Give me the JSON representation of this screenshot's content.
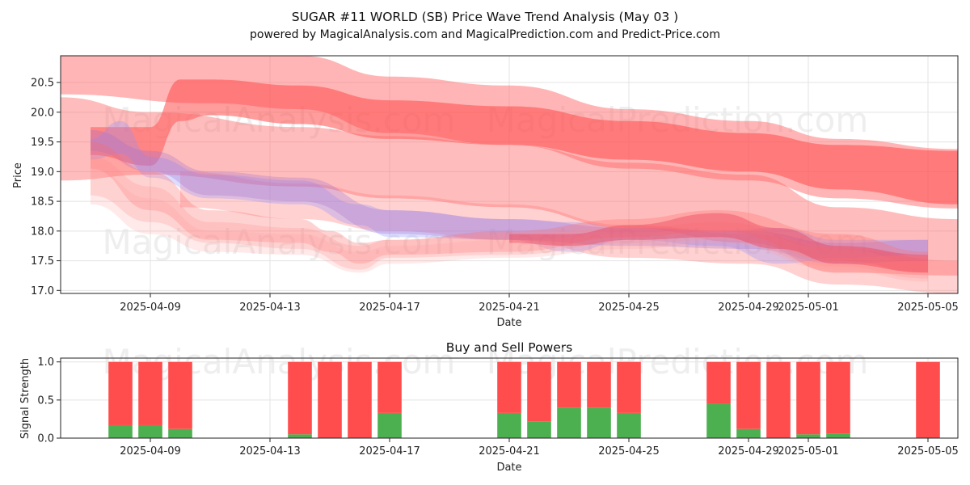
{
  "chart_data": [
    {
      "type": "area",
      "title": "SUGAR #11 WORLD (SB) Price Wave Trend Analysis (May 03 )",
      "subtitle": "powered by MagicalAnalysis.com and MagicalPrediction.com and Predict-Price.com",
      "xlabel": "Date",
      "ylabel": "Price",
      "ylim": [
        16.95,
        20.95
      ],
      "xlim": [
        "2025-04-06",
        "2025-05-06"
      ],
      "yticks": [
        17.0,
        17.5,
        18.0,
        18.5,
        19.0,
        19.5,
        20.0,
        20.5
      ],
      "ytick_labels": [
        "17.0",
        "17.5",
        "18.0",
        "18.5",
        "19.0",
        "19.5",
        "20.0",
        "20.5"
      ],
      "xticks": [
        "2025-04-09",
        "2025-04-13",
        "2025-04-17",
        "2025-04-21",
        "2025-04-25",
        "2025-04-29",
        "2025-05-01",
        "2025-05-05"
      ],
      "watermarks": [
        "MagicalAnalysis.com",
        "MagicalPrediction.com",
        "MagicalAnalysis.com",
        "MagicalPrediction.com"
      ],
      "grid": true,
      "series": [
        {
          "name": "red wide upper band",
          "color": "#ff6b6b",
          "opacity": 0.5,
          "x": [
            "2025-04-06",
            "2025-04-11",
            "2025-04-14",
            "2025-04-17",
            "2025-04-21",
            "2025-04-25",
            "2025-04-29",
            "2025-05-02",
            "2025-05-06"
          ],
          "upper": [
            21.1,
            20.95,
            20.95,
            20.6,
            20.45,
            20.05,
            19.85,
            19.55,
            19.38
          ],
          "lower": [
            20.3,
            20.15,
            20.05,
            19.65,
            19.45,
            19.05,
            18.85,
            18.55,
            18.38
          ]
        },
        {
          "name": "red dense upper band",
          "color": "#ff4b4b",
          "opacity": 0.55,
          "x": [
            "2025-04-07",
            "2025-04-09",
            "2025-04-10",
            "2025-04-11",
            "2025-04-14",
            "2025-04-17",
            "2025-04-21",
            "2025-04-25",
            "2025-04-29",
            "2025-05-02",
            "2025-05-06"
          ],
          "upper": [
            19.75,
            19.75,
            20.55,
            20.55,
            20.45,
            20.2,
            20.1,
            19.85,
            19.65,
            19.45,
            19.35
          ],
          "lower": [
            19.28,
            19.1,
            19.85,
            19.95,
            19.8,
            19.55,
            19.45,
            19.2,
            19.0,
            18.7,
            18.45
          ]
        },
        {
          "name": "red long declining band",
          "color": "#ff6b6b",
          "opacity": 0.45,
          "x": [
            "2025-04-06",
            "2025-04-09",
            "2025-04-14",
            "2025-04-17",
            "2025-04-21",
            "2025-04-25",
            "2025-04-29",
            "2025-05-02",
            "2025-05-06"
          ],
          "upper": [
            20.25,
            20.0,
            19.75,
            19.6,
            19.45,
            19.15,
            18.95,
            18.4,
            18.2
          ],
          "lower": [
            18.85,
            18.95,
            18.75,
            18.55,
            18.4,
            18.05,
            17.8,
            17.3,
            17.25
          ]
        },
        {
          "name": "red low declining band",
          "color": "#ff7b7b",
          "opacity": 0.35,
          "x": [
            "2025-04-10",
            "2025-04-14",
            "2025-04-17",
            "2025-04-21",
            "2025-04-25",
            "2025-04-29",
            "2025-05-02",
            "2025-05-06"
          ],
          "upper": [
            19.0,
            18.8,
            18.6,
            18.45,
            18.1,
            17.95,
            17.7,
            17.5
          ],
          "lower": [
            18.4,
            18.2,
            18.0,
            17.85,
            17.55,
            17.45,
            17.1,
            16.95
          ]
        },
        {
          "name": "blue wave band",
          "color": "#8f8fff",
          "opacity": 0.3,
          "x": [
            "2025-04-07",
            "2025-04-08",
            "2025-04-09",
            "2025-04-11",
            "2025-04-14",
            "2025-04-16",
            "2025-04-17",
            "2025-04-21",
            "2025-04-23",
            "2025-04-25",
            "2025-04-28",
            "2025-04-30",
            "2025-05-02",
            "2025-05-05"
          ],
          "upper": [
            19.55,
            19.85,
            19.25,
            18.95,
            18.85,
            18.45,
            18.35,
            18.2,
            18.15,
            18.05,
            18.0,
            18.05,
            17.85,
            17.85
          ],
          "lower": [
            19.2,
            19.3,
            18.9,
            18.55,
            18.45,
            18.1,
            17.9,
            17.85,
            17.65,
            17.85,
            17.75,
            17.45,
            17.55,
            17.6
          ]
        },
        {
          "name": "purple wave band",
          "color": "#a070d0",
          "opacity": 0.3,
          "x": [
            "2025-04-07",
            "2025-04-09",
            "2025-04-11",
            "2025-04-14",
            "2025-04-17",
            "2025-04-21",
            "2025-04-25",
            "2025-04-29",
            "2025-05-02",
            "2025-05-05"
          ],
          "upper": [
            19.7,
            19.35,
            19.0,
            18.9,
            18.35,
            18.2,
            18.05,
            18.0,
            17.8,
            17.85
          ],
          "lower": [
            19.35,
            19.0,
            18.6,
            18.5,
            17.95,
            17.85,
            17.75,
            17.7,
            17.45,
            17.5
          ]
        },
        {
          "name": "red pink wave band 1",
          "color": "#ff6b6b",
          "opacity": 0.3,
          "x": [
            "2025-04-07",
            "2025-04-09",
            "2025-04-11",
            "2025-04-14",
            "2025-04-15",
            "2025-04-16",
            "2025-04-17",
            "2025-04-21",
            "2025-04-25",
            "2025-04-28",
            "2025-05-02",
            "2025-05-05"
          ],
          "upper": [
            19.5,
            19.0,
            18.35,
            18.2,
            18.0,
            17.8,
            17.85,
            18.0,
            18.2,
            18.35,
            17.95,
            17.65
          ],
          "lower": [
            19.05,
            18.35,
            17.85,
            17.8,
            17.65,
            17.45,
            17.6,
            17.65,
            17.9,
            18.0,
            17.5,
            17.3
          ]
        },
        {
          "name": "red pink wave band 2",
          "color": "#ff8a8a",
          "opacity": 0.25,
          "x": [
            "2025-04-07",
            "2025-04-09",
            "2025-04-11",
            "2025-04-14",
            "2025-04-16",
            "2025-04-17",
            "2025-04-21",
            "2025-04-25",
            "2025-04-28",
            "2025-05-02",
            "2025-05-05"
          ],
          "upper": [
            19.25,
            18.75,
            18.15,
            18.05,
            17.75,
            17.85,
            17.95,
            18.05,
            18.15,
            17.75,
            17.55
          ],
          "lower": [
            18.6,
            18.15,
            17.8,
            17.7,
            17.35,
            17.55,
            17.6,
            17.8,
            17.85,
            17.4,
            17.2
          ]
        },
        {
          "name": "red pink wave band 3",
          "color": "#ff9a9a",
          "opacity": 0.22,
          "x": [
            "2025-04-07",
            "2025-04-09",
            "2025-04-11",
            "2025-04-14",
            "2025-04-16",
            "2025-04-17",
            "2025-04-21",
            "2025-04-25",
            "2025-04-28",
            "2025-05-02",
            "2025-05-05"
          ],
          "upper": [
            19.05,
            18.55,
            18.0,
            17.95,
            17.65,
            17.75,
            17.85,
            17.95,
            18.1,
            17.7,
            17.45
          ],
          "lower": [
            18.45,
            17.95,
            17.65,
            17.6,
            17.3,
            17.45,
            17.55,
            17.7,
            17.8,
            17.35,
            17.15
          ]
        },
        {
          "name": "red dense lower wave",
          "color": "#e8304a",
          "opacity": 0.35,
          "x": [
            "2025-04-21",
            "2025-04-23",
            "2025-04-25",
            "2025-04-28",
            "2025-04-30",
            "2025-05-02",
            "2025-05-05"
          ],
          "upper": [
            17.95,
            17.95,
            18.1,
            18.3,
            18.05,
            17.75,
            17.6
          ],
          "lower": [
            17.8,
            17.75,
            17.85,
            17.9,
            17.7,
            17.45,
            17.3
          ]
        }
      ]
    },
    {
      "type": "bar",
      "title": "Buy and Sell Powers",
      "xlabel": "Date",
      "ylabel": "Signal Strength",
      "ylim": [
        0,
        1.05
      ],
      "xlim": [
        "2025-04-06",
        "2025-05-06"
      ],
      "yticks": [
        0.0,
        0.5,
        1.0
      ],
      "ytick_labels": [
        "0.0",
        "0.5",
        "1.0"
      ],
      "xticks": [
        "2025-04-09",
        "2025-04-13",
        "2025-04-17",
        "2025-04-21",
        "2025-04-25",
        "2025-04-29",
        "2025-05-01",
        "2025-05-05"
      ],
      "watermarks": [
        "MagicalAnalysis.com",
        "MagicalPrediction.com"
      ],
      "grid": true,
      "categories": [
        "2025-04-08",
        "2025-04-09",
        "2025-04-10",
        "2025-04-14",
        "2025-04-15",
        "2025-04-16",
        "2025-04-17",
        "2025-04-21",
        "2025-04-22",
        "2025-04-23",
        "2025-04-24",
        "2025-04-25",
        "2025-04-28",
        "2025-04-29",
        "2025-04-30",
        "2025-05-01",
        "2025-05-02",
        "2025-05-05"
      ],
      "series": [
        {
          "name": "Buy",
          "color": "#4caf50",
          "values": [
            0.17,
            0.17,
            0.12,
            0.05,
            0.0,
            0.0,
            0.33,
            0.33,
            0.22,
            0.4,
            0.4,
            0.33,
            0.45,
            0.12,
            0.0,
            0.05,
            0.06,
            0.0
          ]
        },
        {
          "name": "Sell",
          "color": "#ff4d4d",
          "values": [
            0.83,
            0.83,
            0.88,
            0.95,
            1.0,
            1.0,
            0.67,
            0.67,
            0.78,
            0.6,
            0.6,
            0.67,
            0.55,
            0.88,
            1.0,
            0.95,
            0.94,
            1.0
          ]
        }
      ]
    }
  ]
}
